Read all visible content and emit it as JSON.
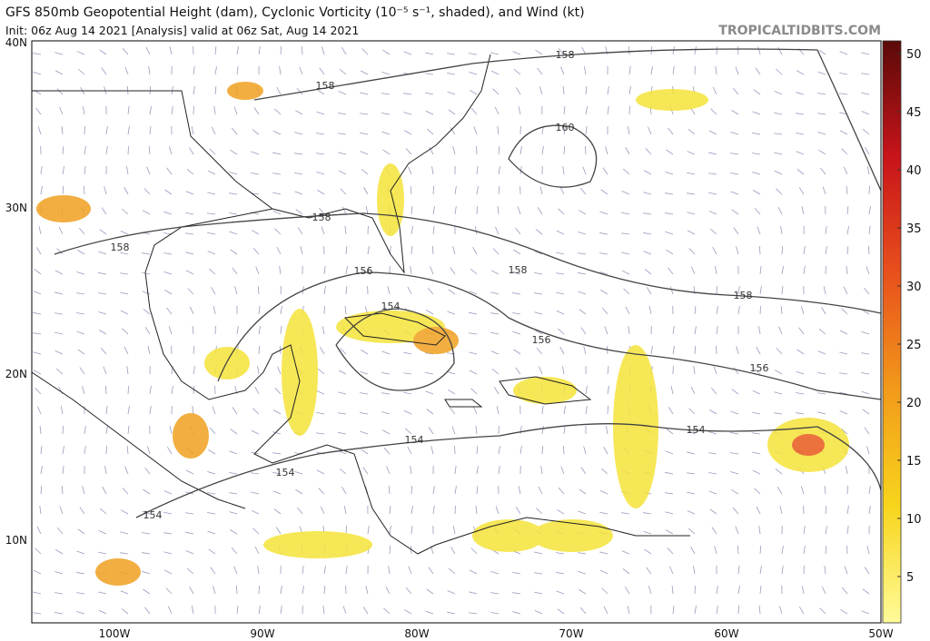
{
  "header": {
    "title": "GFS 850mb Geopotential Height (dam), Cyclonic Vorticity (10⁻⁵ s⁻¹, shaded), and Wind (kt)",
    "subtitle": "Init: 06z Aug 14 2021   [Analysis]   valid at 06z Sat, Aug 14 2021",
    "credit": "TROPICALTIDBITS.COM"
  },
  "map": {
    "lat_labels": [
      "40N",
      "30N",
      "20N",
      "10N"
    ],
    "lon_labels": [
      "100W",
      "90W",
      "80W",
      "70W",
      "60W",
      "50W"
    ],
    "contour_labels": [
      "158",
      "158",
      "160",
      "158",
      "158",
      "156",
      "158",
      "158",
      "154",
      "156",
      "156",
      "154",
      "154",
      "154",
      "154"
    ]
  },
  "colorbar": {
    "ticks": [
      5,
      10,
      15,
      20,
      25,
      30,
      35,
      40,
      45,
      50
    ]
  }
}
